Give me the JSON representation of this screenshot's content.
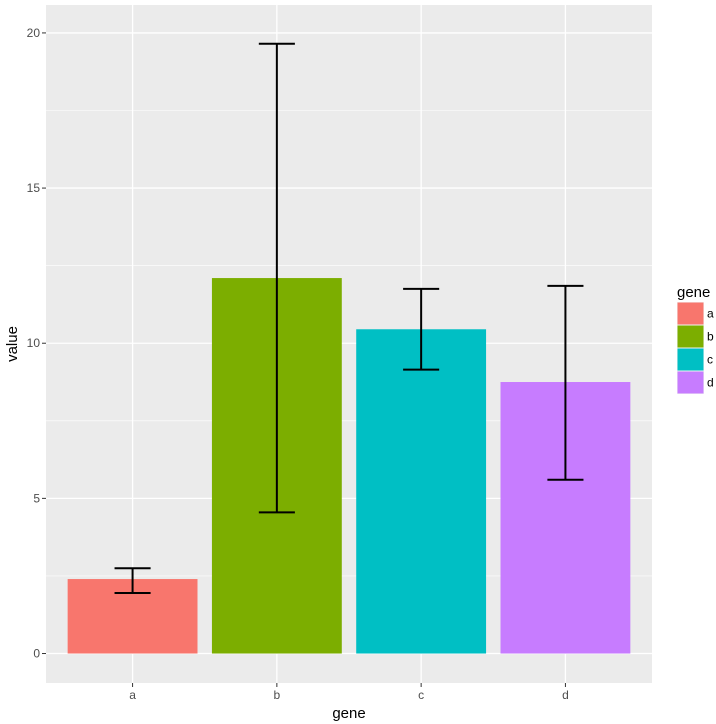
{
  "chart_data": {
    "type": "bar",
    "title": "",
    "xlabel": "gene",
    "ylabel": "value",
    "categories": [
      "a",
      "b",
      "c",
      "d"
    ],
    "values": [
      2.4,
      12.1,
      10.45,
      8.75
    ],
    "error_low": [
      1.95,
      4.55,
      9.15,
      5.6
    ],
    "error_high": [
      2.75,
      19.65,
      11.75,
      11.85
    ],
    "ylim": [
      -0.95,
      20.9
    ],
    "yticks": [
      0,
      5,
      10,
      15,
      20
    ],
    "ytick_labels": [
      "0",
      "5",
      "10",
      "15",
      "20"
    ],
    "colors": [
      "#F8766D",
      "#7CAE00",
      "#00BFC4",
      "#C77CFF"
    ],
    "grid": true,
    "legend": {
      "title": "gene",
      "position": "right",
      "labels": [
        "a",
        "b",
        "c",
        "d"
      ]
    }
  }
}
